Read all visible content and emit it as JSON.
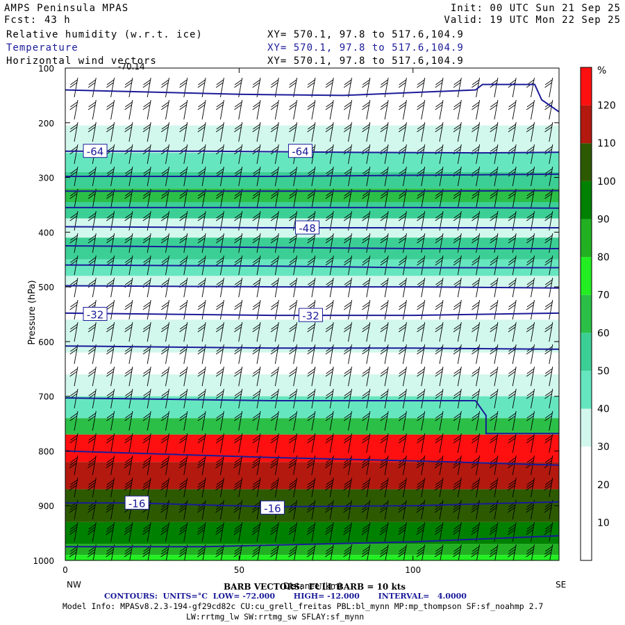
{
  "header": {
    "model": "AMPS Peninsula MPAS",
    "fcst_label": "Fcst:",
    "fcst_value": "43 h",
    "init": "Init: 00 UTC Sun 21 Sep 25",
    "valid": "Valid: 19 UTC Mon 22 Sep 25",
    "fields": [
      {
        "name": "Relative humidity (w.r.t. ice)",
        "xy": "XY= 570.1, 97.8 to 517.6,104.9"
      },
      {
        "name": "Temperature",
        "xy": "XY= 570.1, 97.8 to 517.6,104.9"
      },
      {
        "name": "Horizontal wind vectors",
        "xy": "XY= 570.1, 97.8 to 517.6,104.9"
      }
    ],
    "top_fragment": "-70.14"
  },
  "colors": {
    "temp_contour": "#1a1a99",
    "rh_bins": [
      "#ffffff",
      "#ffffff",
      "#ffffff",
      "#d2f7ec",
      "#66e6bf",
      "#3ccf95",
      "#2bbf47",
      "#22ee22",
      "#22b022",
      "#008000",
      "#2d5a00",
      "#b3190f",
      "#ff1010"
    ]
  },
  "chart_data": {
    "type": "heatmap",
    "ylabel": "Pressure (hPa)",
    "xlabel": "Distance (km)",
    "x_ticks": [
      0,
      50,
      100
    ],
    "x_range": [
      0,
      142
    ],
    "y_ticks": [
      100,
      200,
      300,
      400,
      500,
      600,
      700,
      800,
      900,
      1000
    ],
    "y_range": [
      100,
      1000
    ],
    "endpoints": {
      "left": "NW",
      "right": "SE"
    },
    "colorbar": {
      "unit": "%",
      "levels": [
        10,
        20,
        30,
        40,
        50,
        60,
        70,
        80,
        90,
        100,
        110,
        120
      ]
    },
    "rh_layers": [
      {
        "p_top": 205,
        "p_bot": 255,
        "rh": 35
      },
      {
        "p_top": 255,
        "p_bot": 290,
        "rh": 45
      },
      {
        "p_top": 290,
        "p_bot": 320,
        "rh": 55
      },
      {
        "p_top": 320,
        "p_bot": 345,
        "rh": 65
      },
      {
        "p_top": 345,
        "p_bot": 375,
        "rh": 55
      },
      {
        "p_top": 375,
        "p_bot": 410,
        "rh": 35
      },
      {
        "p_top": 410,
        "p_bot": 450,
        "rh": 55
      },
      {
        "p_top": 450,
        "p_bot": 480,
        "rh": 45
      },
      {
        "p_top": 480,
        "p_bot": 500,
        "rh": 35
      },
      {
        "p_top": 560,
        "p_bot": 620,
        "rh": 35
      },
      {
        "p_top": 660,
        "p_bot": 700,
        "rh": 35
      },
      {
        "p_top": 700,
        "p_bot": 740,
        "rh": 45
      },
      {
        "p_top": 740,
        "p_bot": 770,
        "rh": 65
      },
      {
        "p_top": 770,
        "p_bot": 820,
        "rh": 125
      },
      {
        "p_top": 820,
        "p_bot": 870,
        "rh": 115
      },
      {
        "p_top": 870,
        "p_bot": 930,
        "rh": 105
      },
      {
        "p_top": 930,
        "p_bot": 970,
        "rh": 95
      },
      {
        "p_top": 970,
        "p_bot": 990,
        "rh": 85
      },
      {
        "p_top": 990,
        "p_bot": 1000,
        "rh": 75
      }
    ],
    "temp_contours": [
      {
        "label": "-64",
        "points": [
          [
            0,
            252
          ],
          [
            40,
            252
          ],
          [
            80,
            254
          ],
          [
            120,
            255
          ],
          [
            142,
            254
          ]
        ],
        "label_at": [
          [
            8,
            252
          ],
          [
            67,
            252
          ]
        ]
      },
      {
        "label": "",
        "points": [
          [
            0,
            140
          ],
          [
            50,
            148
          ],
          [
            80,
            150
          ],
          [
            118,
            140
          ],
          [
            120,
            130
          ],
          [
            135,
            130
          ],
          [
            137,
            158
          ],
          [
            142,
            180
          ]
        ],
        "label_at": []
      },
      {
        "label": "",
        "points": [
          [
            0,
            298
          ],
          [
            60,
            298
          ],
          [
            100,
            296
          ],
          [
            142,
            294
          ]
        ],
        "label_at": []
      },
      {
        "label": "",
        "points": [
          [
            0,
            325
          ],
          [
            60,
            325
          ],
          [
            100,
            325
          ],
          [
            142,
            324
          ]
        ],
        "label_at": []
      },
      {
        "label": "",
        "points": [
          [
            0,
            355
          ],
          [
            60,
            355
          ],
          [
            100,
            355
          ],
          [
            142,
            356
          ]
        ],
        "label_at": []
      },
      {
        "label": "-48",
        "points": [
          [
            0,
            390
          ],
          [
            60,
            392
          ],
          [
            100,
            392
          ],
          [
            142,
            392
          ]
        ],
        "label_at": [
          [
            69,
            392
          ]
        ]
      },
      {
        "label": "",
        "points": [
          [
            0,
            425
          ],
          [
            60,
            428
          ],
          [
            100,
            430
          ],
          [
            142,
            430
          ]
        ],
        "label_at": []
      },
      {
        "label": "",
        "points": [
          [
            0,
            460
          ],
          [
            60,
            462
          ],
          [
            100,
            465
          ],
          [
            142,
            465
          ]
        ],
        "label_at": []
      },
      {
        "label": "",
        "points": [
          [
            0,
            498
          ],
          [
            60,
            500
          ],
          [
            100,
            500
          ],
          [
            142,
            502
          ]
        ],
        "label_at": []
      },
      {
        "label": "-32",
        "points": [
          [
            0,
            548
          ],
          [
            60,
            552
          ],
          [
            100,
            552
          ],
          [
            142,
            548
          ]
        ],
        "label_at": [
          [
            8,
            550
          ],
          [
            70,
            552
          ]
        ]
      },
      {
        "label": "",
        "points": [
          [
            0,
            608
          ],
          [
            60,
            612
          ],
          [
            100,
            612
          ],
          [
            142,
            614
          ]
        ],
        "label_at": []
      },
      {
        "label": "",
        "points": [
          [
            0,
            703
          ],
          [
            60,
            708
          ],
          [
            118,
            708
          ],
          [
            121,
            735
          ],
          [
            121,
            768
          ],
          [
            142,
            768
          ]
        ],
        "label_at": []
      },
      {
        "label": "",
        "points": [
          [
            0,
            800
          ],
          [
            60,
            812
          ],
          [
            100,
            818
          ],
          [
            142,
            826
          ]
        ],
        "label_at": []
      },
      {
        "label": "-16",
        "points": [
          [
            0,
            895
          ],
          [
            20,
            895
          ],
          [
            60,
            902
          ],
          [
            100,
            900
          ],
          [
            142,
            893
          ]
        ],
        "label_at": [
          [
            20,
            895
          ],
          [
            59,
            904
          ]
        ]
      },
      {
        "label": "",
        "points": [
          [
            0,
            975
          ],
          [
            40,
            975
          ],
          [
            100,
            966
          ],
          [
            142,
            955
          ]
        ],
        "label_at": []
      }
    ]
  },
  "footer": {
    "barb": "BARB VECTORS:  FULL BARB = 10 kts",
    "contours": "CONTOURS:  UNITS=°C  LOW= -72.000       HIGH= -12.000       INTERVAL=   4.0000",
    "model_info": "Model Info: MPASv8.2.3-194-gf29cd82c CU:cu_grell_freitas PBL:bl_mynn MP:mp_thompson SF:sf_noahmp 2.7",
    "model_info2": "LW:rrtmg_lw SW:rrtmg_sw SFLAY:sf_mynn"
  }
}
